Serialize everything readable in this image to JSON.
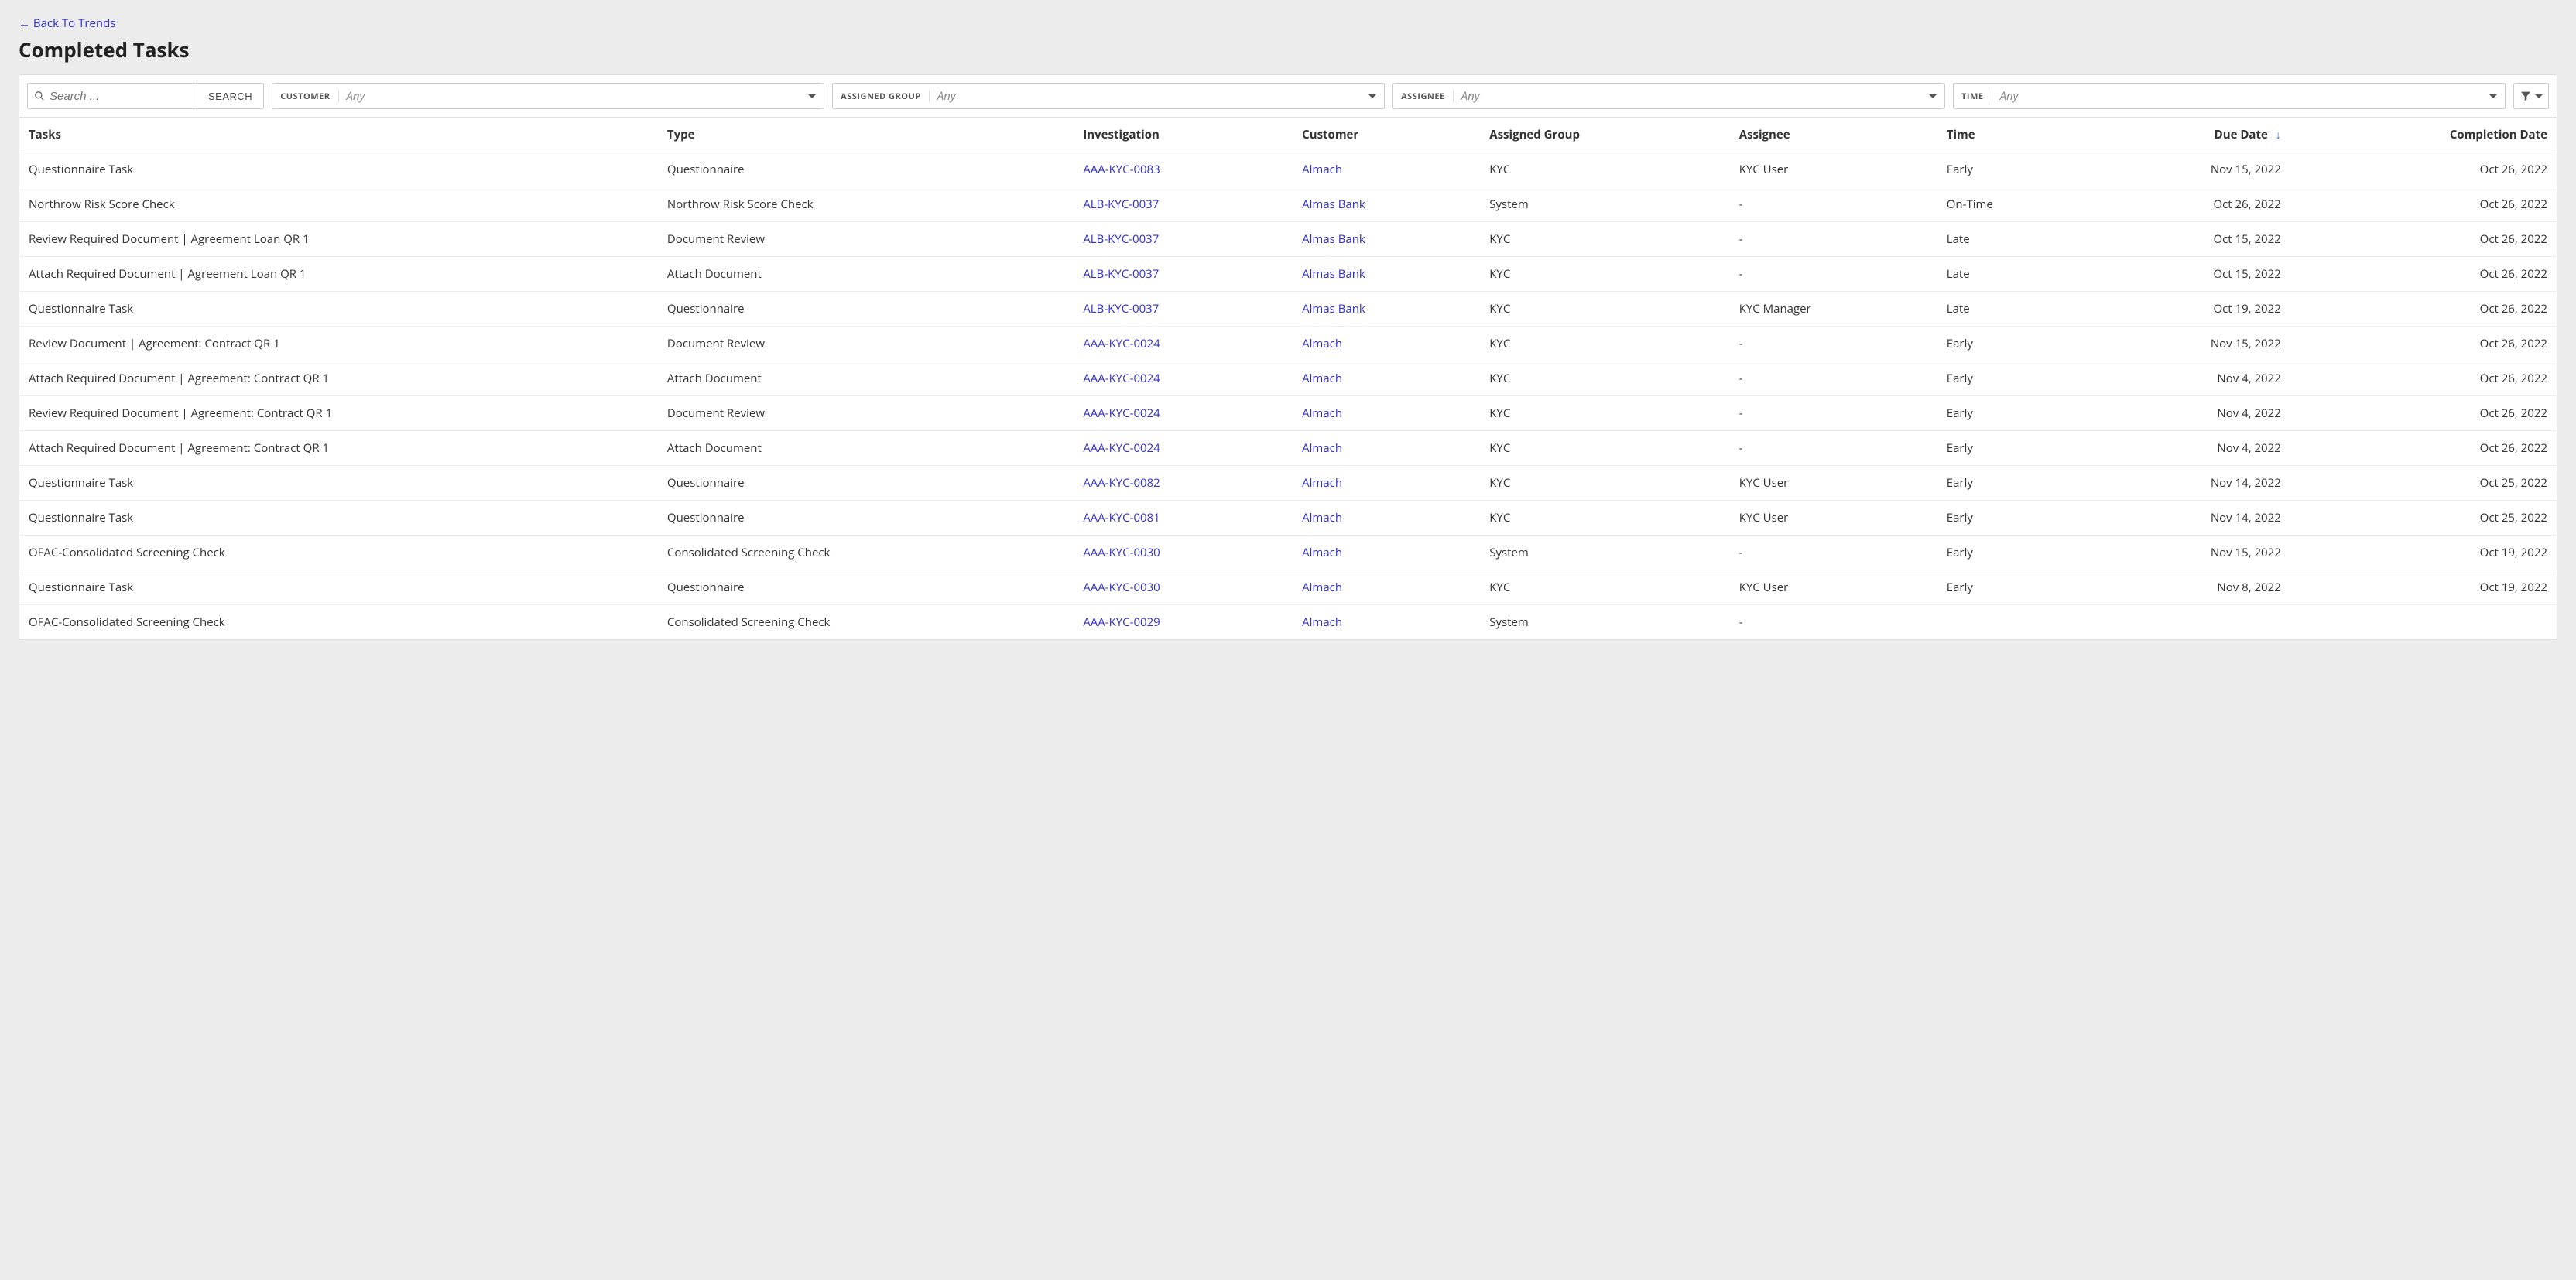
{
  "nav": {
    "back_arrow": "←",
    "back_label": "Back To Trends"
  },
  "page": {
    "title": "Completed Tasks"
  },
  "toolbar": {
    "search_placeholder": "Search ...",
    "search_button": "SEARCH",
    "filters": {
      "customer": {
        "label": "CUSTOMER",
        "value": "Any"
      },
      "assigned_group": {
        "label": "ASSIGNED GROUP",
        "value": "Any"
      },
      "assignee": {
        "label": "ASSIGNEE",
        "value": "Any"
      },
      "time": {
        "label": "TIME",
        "value": "Any"
      }
    }
  },
  "table": {
    "columns": {
      "tasks": "Tasks",
      "type": "Type",
      "investigation": "Investigation",
      "customer": "Customer",
      "assigned_group": "Assigned Group",
      "assignee": "Assignee",
      "time": "Time",
      "due_date": "Due Date",
      "completion_date": "Completion Date"
    },
    "sort_indicator": "↓",
    "rows": [
      {
        "task": "Questionnaire Task",
        "type": "Questionnaire",
        "investigation": "AAA-KYC-0083",
        "customer": "Almach",
        "assigned_group": "KYC",
        "assignee": "KYC User",
        "time": "Early",
        "due_date": "Nov 15, 2022",
        "completion_date": "Oct 26, 2022"
      },
      {
        "task": "Northrow Risk Score Check",
        "type": "Northrow Risk Score Check",
        "investigation": "ALB-KYC-0037",
        "customer": "Almas Bank",
        "assigned_group": "System",
        "assignee": "-",
        "time": "On-Time",
        "due_date": "Oct 26, 2022",
        "completion_date": "Oct 26, 2022"
      },
      {
        "task": "Review Required Document | Agreement Loan QR 1",
        "type": "Document Review",
        "investigation": "ALB-KYC-0037",
        "customer": "Almas Bank",
        "assigned_group": "KYC",
        "assignee": "-",
        "time": "Late",
        "due_date": "Oct 15, 2022",
        "completion_date": "Oct 26, 2022"
      },
      {
        "task": "Attach Required Document | Agreement Loan QR   1",
        "type": "Attach Document",
        "investigation": "ALB-KYC-0037",
        "customer": "Almas Bank",
        "assigned_group": "KYC",
        "assignee": "-",
        "time": "Late",
        "due_date": "Oct 15, 2022",
        "completion_date": "Oct 26, 2022"
      },
      {
        "task": "Questionnaire Task",
        "type": "Questionnaire",
        "investigation": "ALB-KYC-0037",
        "customer": "Almas Bank",
        "assigned_group": "KYC",
        "assignee": "KYC Manager",
        "time": "Late",
        "due_date": "Oct 19, 2022",
        "completion_date": "Oct 26, 2022"
      },
      {
        "task": "Review Document | Agreement: Contract QR 1",
        "type": "Document Review",
        "investigation": "AAA-KYC-0024",
        "customer": "Almach",
        "assigned_group": "KYC",
        "assignee": "-",
        "time": "Early",
        "due_date": "Nov 15, 2022",
        "completion_date": "Oct 26, 2022"
      },
      {
        "task": "Attach Required Document | Agreement: Contract QR 1",
        "type": "Attach Document",
        "investigation": "AAA-KYC-0024",
        "customer": "Almach",
        "assigned_group": "KYC",
        "assignee": "-",
        "time": "Early",
        "due_date": "Nov 4, 2022",
        "completion_date": "Oct 26, 2022"
      },
      {
        "task": "Review Required Document | Agreement: Contract QR 1",
        "type": "Document Review",
        "investigation": "AAA-KYC-0024",
        "customer": "Almach",
        "assigned_group": "KYC",
        "assignee": "-",
        "time": "Early",
        "due_date": "Nov 4, 2022",
        "completion_date": "Oct 26, 2022"
      },
      {
        "task": "Attach Required Document | Agreement: Contract QR 1",
        "type": "Attach Document",
        "investigation": "AAA-KYC-0024",
        "customer": "Almach",
        "assigned_group": "KYC",
        "assignee": "-",
        "time": "Early",
        "due_date": "Nov 4, 2022",
        "completion_date": "Oct 26, 2022"
      },
      {
        "task": "Questionnaire Task",
        "type": "Questionnaire",
        "investigation": "AAA-KYC-0082",
        "customer": "Almach",
        "assigned_group": "KYC",
        "assignee": "KYC User",
        "time": "Early",
        "due_date": "Nov 14, 2022",
        "completion_date": "Oct 25, 2022"
      },
      {
        "task": "Questionnaire Task",
        "type": "Questionnaire",
        "investigation": "AAA-KYC-0081",
        "customer": "Almach",
        "assigned_group": "KYC",
        "assignee": "KYC User",
        "time": "Early",
        "due_date": "Nov 14, 2022",
        "completion_date": "Oct 25, 2022"
      },
      {
        "task": "OFAC-Consolidated Screening Check",
        "type": "Consolidated Screening Check",
        "investigation": "AAA-KYC-0030",
        "customer": "Almach",
        "assigned_group": "System",
        "assignee": "-",
        "time": "Early",
        "due_date": "Nov 15, 2022",
        "completion_date": "Oct 19, 2022"
      },
      {
        "task": "Questionnaire Task",
        "type": "Questionnaire",
        "investigation": "AAA-KYC-0030",
        "customer": "Almach",
        "assigned_group": "KYC",
        "assignee": "KYC User",
        "time": "Early",
        "due_date": "Nov 8, 2022",
        "completion_date": "Oct 19, 2022"
      },
      {
        "task": "OFAC-Consolidated Screening Check",
        "type": "Consolidated Screening Check",
        "investigation": "AAA-KYC-0029",
        "customer": "Almach",
        "assigned_group": "System",
        "assignee": "-",
        "time": "",
        "due_date": "",
        "completion_date": ""
      }
    ]
  },
  "colors": {
    "link": "#3030cc",
    "page_bg": "#ececec",
    "panel_bg": "#ffffff",
    "border": "#dddddd",
    "text": "#333333",
    "sort_arrow": "#2b5fe0"
  }
}
